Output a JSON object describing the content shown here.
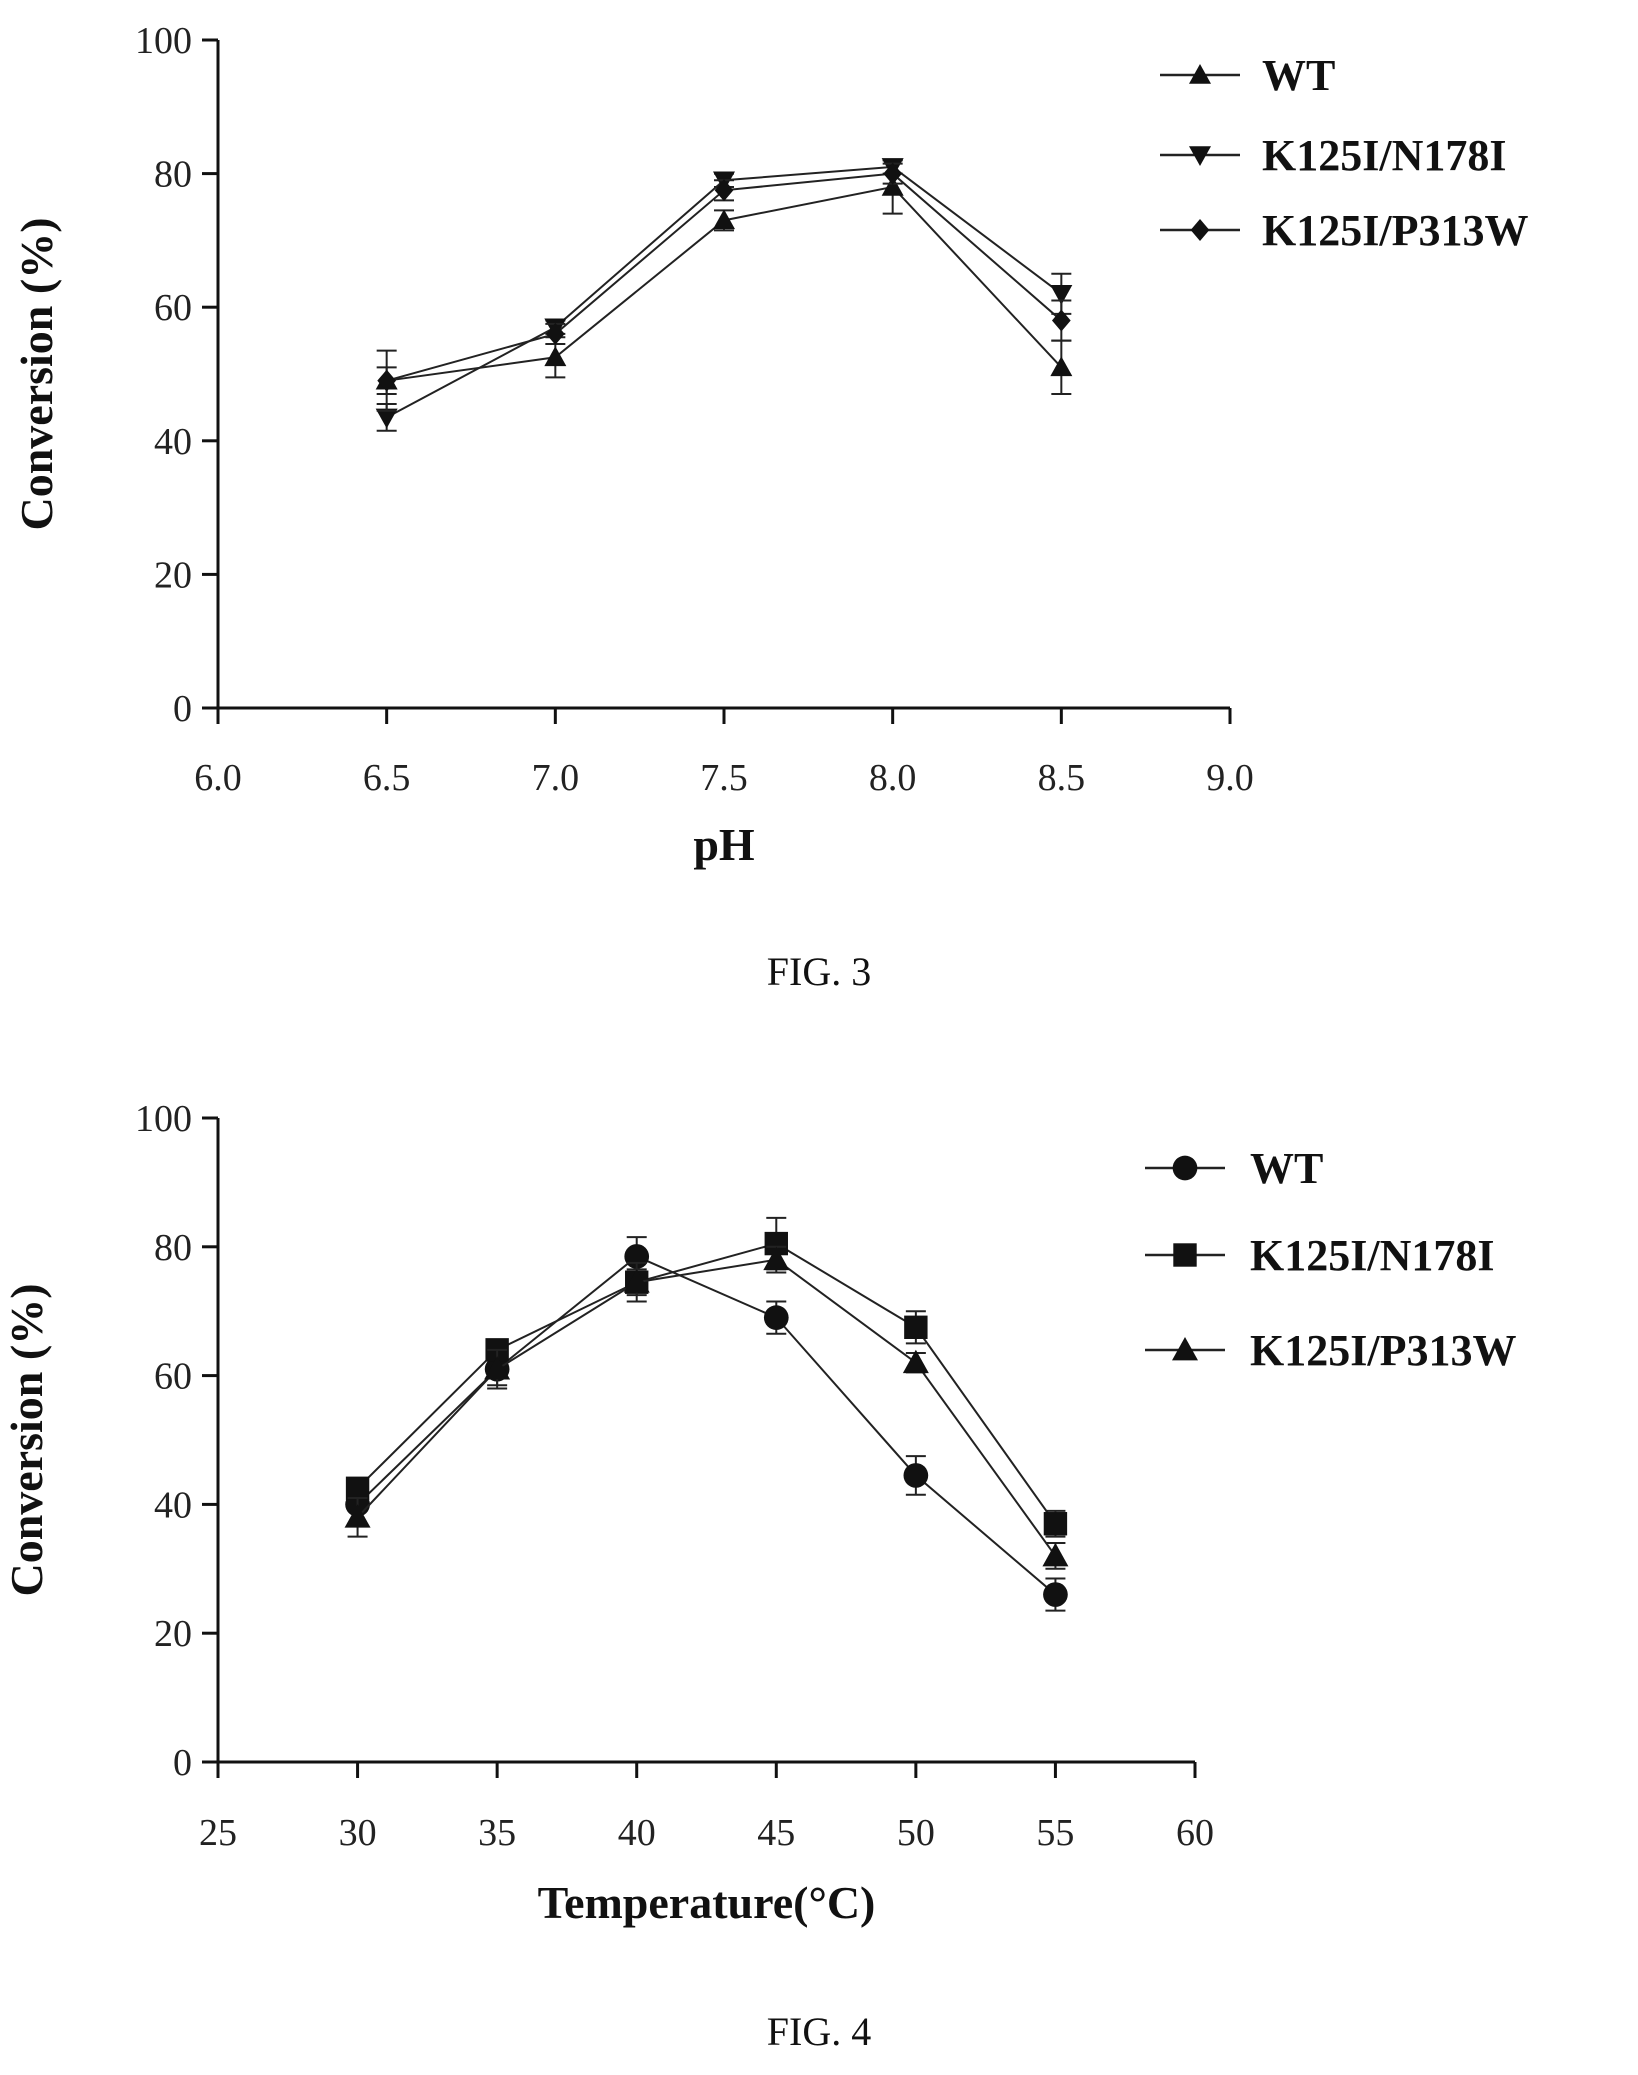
{
  "chart_data": [
    {
      "type": "line",
      "caption": "FIG. 3",
      "xlabel": "pH",
      "ylabel": "Conversion (%)",
      "xlim": [
        6.0,
        9.0
      ],
      "ylim": [
        0,
        100
      ],
      "xticks": [
        "6.0",
        "6.5",
        "7.0",
        "7.5",
        "8.0",
        "8.5",
        "9.0"
      ],
      "yticks": [
        "0",
        "20",
        "40",
        "60",
        "80",
        "100"
      ],
      "x": [
        6.5,
        7.0,
        7.5,
        8.0,
        8.5
      ],
      "legend_position": "top-right",
      "series": [
        {
          "name": "WT",
          "marker": "triangle-up",
          "values": [
            49,
            52.5,
            73,
            78,
            51
          ],
          "errors": [
            2,
            3,
            1.5,
            4,
            4
          ]
        },
        {
          "name": "K125I/N178I",
          "marker": "triangle-down",
          "values": [
            43.5,
            57,
            79,
            81,
            62
          ],
          "errors": [
            2,
            1,
            1,
            1,
            3
          ]
        },
        {
          "name": "K125I/P313W",
          "marker": "diamond",
          "values": [
            49,
            56,
            77.5,
            80,
            58
          ],
          "errors": [
            4.5,
            1.5,
            1.5,
            1.5,
            3
          ]
        }
      ]
    },
    {
      "type": "line",
      "caption": "FIG. 4",
      "xlabel": "Temperature(°C)",
      "ylabel": "Conversion (%)",
      "xlim": [
        25,
        60
      ],
      "ylim": [
        0,
        100
      ],
      "xticks": [
        "25",
        "30",
        "35",
        "40",
        "45",
        "50",
        "55",
        "60"
      ],
      "yticks": [
        "0",
        "20",
        "40",
        "60",
        "80",
        "100"
      ],
      "x": [
        30,
        35,
        40,
        45,
        50,
        55
      ],
      "legend_position": "top-right",
      "series": [
        {
          "name": "WT",
          "marker": "circle",
          "values": [
            40,
            61,
            78.5,
            69,
            44.5,
            26
          ],
          "errors": [
            3,
            2.5,
            3,
            2.5,
            3,
            2.5
          ]
        },
        {
          "name": "K125I/N178I",
          "marker": "square",
          "values": [
            42.5,
            64,
            74.5,
            80.5,
            67.5,
            37
          ],
          "errors": [
            1,
            1,
            2,
            4,
            2.5,
            2
          ]
        },
        {
          "name": "K125I/P313W",
          "marker": "triangle-up",
          "values": [
            38,
            61,
            74.5,
            78,
            62,
            32
          ],
          "errors": [
            3,
            3,
            3,
            2,
            1.5,
            2
          ]
        }
      ]
    }
  ]
}
